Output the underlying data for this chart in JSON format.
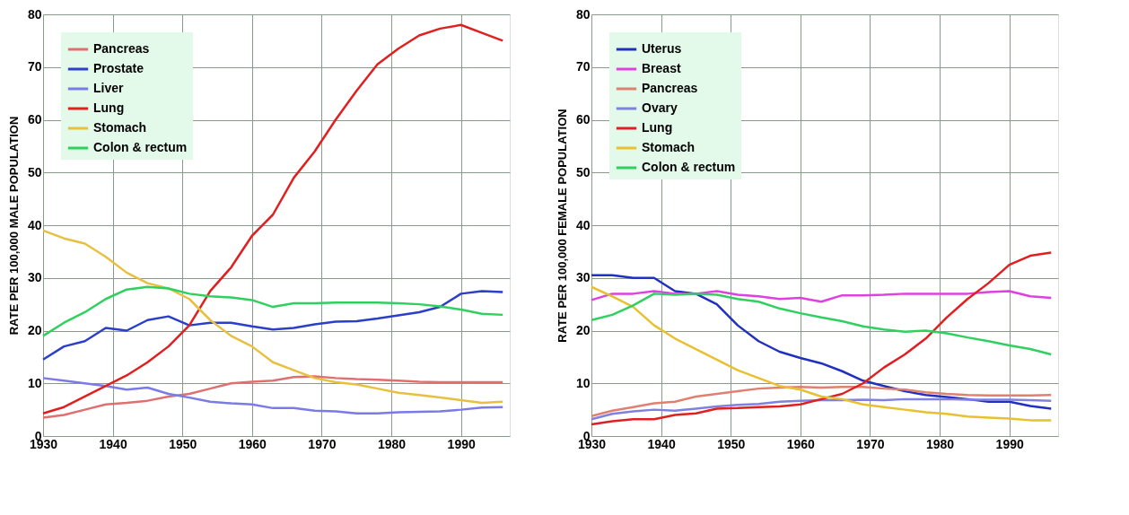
{
  "chart_data": [
    {
      "type": "line",
      "ylabel": "RATE PER 100,000 MALE POPULATION",
      "x": [
        1930,
        1933,
        1936,
        1939,
        1942,
        1945,
        1948,
        1951,
        1954,
        1957,
        1960,
        1963,
        1966,
        1969,
        1972,
        1975,
        1978,
        1981,
        1984,
        1987,
        1990,
        1993,
        1996
      ],
      "xlim": [
        1930,
        1997
      ],
      "xticks": [
        1930,
        1940,
        1950,
        1960,
        1970,
        1980,
        1990
      ],
      "ylim": [
        0,
        80
      ],
      "yticks": [
        0,
        10,
        20,
        30,
        40,
        50,
        60,
        70,
        80
      ],
      "grid": true,
      "legend": "top left",
      "series": [
        {
          "name": "Pancreas",
          "color": "#e07070",
          "values": [
            3.5,
            4,
            5,
            6,
            6.3,
            6.7,
            7.5,
            8,
            9,
            10,
            10.3,
            10.5,
            11.2,
            11.3,
            11,
            10.8,
            10.7,
            10.5,
            10.3,
            10.2,
            10.2,
            10.2,
            10.2
          ]
        },
        {
          "name": "Prostate",
          "color": "#2b3fc8",
          "values": [
            14.5,
            17,
            18,
            20.5,
            20,
            22,
            22.7,
            21,
            21.5,
            21.5,
            20.8,
            20.2,
            20.5,
            21.2,
            21.7,
            21.8,
            22.3,
            22.9,
            23.5,
            24.5,
            27,
            27.5,
            27.3
          ]
        },
        {
          "name": "Liver",
          "color": "#7a7ae8",
          "values": [
            11,
            10.5,
            10,
            9.5,
            8.8,
            9.2,
            8,
            7.3,
            6.5,
            6.2,
            6,
            5.3,
            5.3,
            4.8,
            4.7,
            4.3,
            4.3,
            4.5,
            4.6,
            4.7,
            5,
            5.4,
            5.5
          ]
        },
        {
          "name": "Lung",
          "color": "#e02020",
          "values": [
            4.3,
            5.5,
            7.5,
            9.5,
            11.5,
            14,
            17,
            21,
            27.5,
            32,
            38,
            42,
            49,
            54,
            60,
            65.5,
            70.5,
            73.5,
            76,
            77.3,
            78,
            76.5,
            75
          ]
        },
        {
          "name": "Stomach",
          "color": "#e8c040",
          "values": [
            39,
            37.5,
            36.5,
            34,
            31,
            29,
            28,
            26,
            22,
            19,
            17,
            14,
            12.5,
            11,
            10.2,
            9.8,
            9,
            8.2,
            7.8,
            7.3,
            6.8,
            6.3,
            6.5
          ]
        },
        {
          "name": "Colon & rectum",
          "color": "#30d060",
          "values": [
            19,
            21.5,
            23.5,
            26,
            27.8,
            28.3,
            28,
            27,
            26.5,
            26.3,
            25.8,
            24.5,
            25.2,
            25.2,
            25.3,
            25.3,
            25.3,
            25.2,
            25,
            24.6,
            24,
            23.2,
            23
          ]
        }
      ]
    },
    {
      "type": "line",
      "ylabel": "RATE PER 100,000 FEMALE POPULATION",
      "x": [
        1930,
        1933,
        1936,
        1939,
        1942,
        1945,
        1948,
        1951,
        1954,
        1957,
        1960,
        1963,
        1966,
        1969,
        1972,
        1975,
        1978,
        1981,
        1984,
        1987,
        1990,
        1993,
        1996
      ],
      "xlim": [
        1930,
        1997
      ],
      "xticks": [
        1930,
        1940,
        1950,
        1960,
        1970,
        1980,
        1990
      ],
      "ylim": [
        0,
        80
      ],
      "yticks": [
        0,
        10,
        20,
        30,
        40,
        50,
        60,
        70,
        80
      ],
      "grid": true,
      "legend": "top left",
      "series": [
        {
          "name": "Uterus",
          "color": "#2030c0",
          "values": [
            30.5,
            30.5,
            30,
            30,
            27.5,
            27,
            25,
            21,
            18,
            16,
            14.8,
            13.8,
            12.3,
            10.5,
            9.5,
            8.5,
            7.8,
            7.4,
            7,
            6.5,
            6.5,
            5.7,
            5.2
          ]
        },
        {
          "name": "Breast",
          "color": "#e040e0",
          "values": [
            25.8,
            27,
            27,
            27.5,
            27,
            27,
            27.5,
            26.8,
            26.5,
            26,
            26.2,
            25.5,
            26.7,
            26.7,
            26.8,
            27,
            27,
            27,
            27,
            27.3,
            27.5,
            26.5,
            26.2
          ]
        },
        {
          "name": "Pancreas",
          "color": "#e08070",
          "values": [
            3.8,
            4.8,
            5.5,
            6.2,
            6.5,
            7.5,
            8,
            8.5,
            9,
            9.2,
            9.3,
            9.2,
            9.3,
            9.3,
            9,
            8.8,
            8.3,
            8,
            7.8,
            7.7,
            7.7,
            7.7,
            7.8
          ]
        },
        {
          "name": "Ovary",
          "color": "#8080e0",
          "values": [
            3.2,
            4.2,
            4.7,
            5,
            4.8,
            5.2,
            5.6,
            5.9,
            6.1,
            6.5,
            6.7,
            6.8,
            6.8,
            6.9,
            6.8,
            7,
            7,
            7,
            6.9,
            6.9,
            6.9,
            6.8,
            6.7
          ]
        },
        {
          "name": "Lung",
          "color": "#e02020",
          "values": [
            2.2,
            2.8,
            3.2,
            3.2,
            4,
            4.3,
            5.2,
            5.3,
            5.5,
            5.6,
            6,
            7,
            8,
            10,
            13,
            15.5,
            18.5,
            22.5,
            26,
            29,
            32.5,
            34.2,
            34.8
          ]
        },
        {
          "name": "Stomach",
          "color": "#e8c030",
          "values": [
            28.3,
            26.5,
            24.5,
            21,
            18.5,
            16.5,
            14.5,
            12.5,
            11,
            9.5,
            8.8,
            7.5,
            7,
            6,
            5.5,
            5,
            4.5,
            4.2,
            3.7,
            3.5,
            3.3,
            3,
            3
          ]
        },
        {
          "name": "Colon & rectum",
          "color": "#30d060",
          "values": [
            22,
            23,
            24.8,
            27,
            26.8,
            27,
            26.8,
            26,
            25.5,
            24.2,
            23.3,
            22.5,
            21.8,
            20.8,
            20.2,
            19.8,
            20,
            19.5,
            18.7,
            18,
            17.2,
            16.5,
            15.5
          ]
        }
      ]
    }
  ]
}
